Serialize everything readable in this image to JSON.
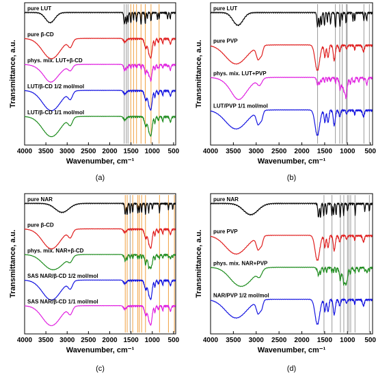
{
  "chart_data": [
    {
      "type": "line",
      "panel_label": "(a)",
      "xlabel": "Wavenumber, cm⁻¹",
      "ylabel": "Transmittance, a.u.",
      "xlim": [
        4000,
        450
      ],
      "x_reversed": true,
      "xticks": [
        4000,
        3500,
        3000,
        2500,
        2000,
        1500,
        1000,
        500
      ],
      "y_ticks_shown": false,
      "series": [
        {
          "name": "pure LUT",
          "color": "#000000",
          "shape": "lut",
          "stack_index": 0
        },
        {
          "name": "pure β-CD",
          "color": "#e01e1e",
          "shape": "cd",
          "stack_index": 1
        },
        {
          "name": "phys. mix. LUT+β-CD",
          "color": "#e020e0",
          "shape": "mixlut",
          "stack_index": 2
        },
        {
          "name": "LUT/β-CD 1/2 mol/mol",
          "color": "#1414e0",
          "shape": "cd",
          "stack_index": 3
        },
        {
          "name": "LUT/β-CD 1/1 mol/mol",
          "color": "#1e8c1e",
          "shape": "cd",
          "stack_index": 4
        }
      ],
      "vlines_gray": [
        1660,
        1610,
        1570
      ],
      "vlines_orange": [
        1505,
        1440,
        1370,
        1265,
        1165,
        1030,
        840
      ]
    },
    {
      "type": "line",
      "panel_label": "(b)",
      "xlabel": "Wavenumber, cm⁻¹",
      "ylabel": "Transmittance, a.u.",
      "xlim": [
        4000,
        450
      ],
      "x_reversed": true,
      "xticks": [
        4000,
        3500,
        3000,
        2500,
        2000,
        1500,
        1000,
        500
      ],
      "y_ticks_shown": false,
      "series": [
        {
          "name": "pure LUT",
          "color": "#000000",
          "shape": "lut",
          "stack_index": 0
        },
        {
          "name": "pure PVP",
          "color": "#e01e1e",
          "shape": "pvp",
          "stack_index": 1
        },
        {
          "name": "phys. mix. LUT+PVP",
          "color": "#e020e0",
          "shape": "mixlut",
          "stack_index": 2
        },
        {
          "name": "LUT/PVP 1/1 mol/mol",
          "color": "#1414e0",
          "shape": "pvp",
          "stack_index": 3
        }
      ],
      "vlines_gray": [
        1655,
        1265,
        1170,
        1115,
        1025,
        1005,
        640,
        520
      ],
      "vlines_orange": []
    },
    {
      "type": "line",
      "panel_label": "(c)",
      "xlabel": "Wavenumber, cm⁻¹",
      "ylabel": "Transmittance, a.u.",
      "xlim": [
        4000,
        450
      ],
      "x_reversed": true,
      "xticks": [
        4000,
        3500,
        3000,
        2500,
        2000,
        1500,
        1000,
        500
      ],
      "y_ticks_shown": false,
      "series": [
        {
          "name": "pure NAR",
          "color": "#000000",
          "shape": "nar",
          "stack_index": 0
        },
        {
          "name": "pure β-CD",
          "color": "#e01e1e",
          "shape": "cd",
          "stack_index": 1
        },
        {
          "name": "phys. mix. NAR+β-CD",
          "color": "#1e8c1e",
          "shape": "mixnar",
          "stack_index": 2
        },
        {
          "name": "SAS NAR/β-CD 1/2 mol/mol",
          "color": "#1414e0",
          "shape": "cd",
          "stack_index": 3
        },
        {
          "name": "SAS NAR/β-CD 1/1 mol/mol",
          "color": "#e020e0",
          "shape": "cd",
          "stack_index": 4
        }
      ],
      "vlines_gray": [
        1520
      ],
      "vlines_orange": [
        1635,
        1590,
        1460,
        1340,
        1305,
        1250,
        1160,
        830,
        620,
        480
      ]
    },
    {
      "type": "line",
      "panel_label": "(d)",
      "xlabel": "Wavenumber, cm⁻¹",
      "ylabel": "Transmittance, a.u.",
      "xlim": [
        4000,
        450
      ],
      "x_reversed": true,
      "xticks": [
        4000,
        3500,
        3000,
        2500,
        2000,
        1500,
        1000,
        500
      ],
      "y_ticks_shown": false,
      "series": [
        {
          "name": "pure NAR",
          "color": "#000000",
          "shape": "nar",
          "stack_index": 0
        },
        {
          "name": "pure PVP",
          "color": "#e01e1e",
          "shape": "pvp",
          "stack_index": 1
        },
        {
          "name": "phys. mix. NAR+PVP",
          "color": "#1e8c1e",
          "shape": "mixnar",
          "stack_index": 2
        },
        {
          "name": "NAR/PVP 1/2 mol/mol",
          "color": "#1414e0",
          "shape": "pvp",
          "stack_index": 3
        }
      ],
      "vlines_gray": [
        1515,
        1340,
        1155,
        1080,
        1000,
        970,
        930,
        835,
        520
      ],
      "vlines_orange": []
    }
  ]
}
